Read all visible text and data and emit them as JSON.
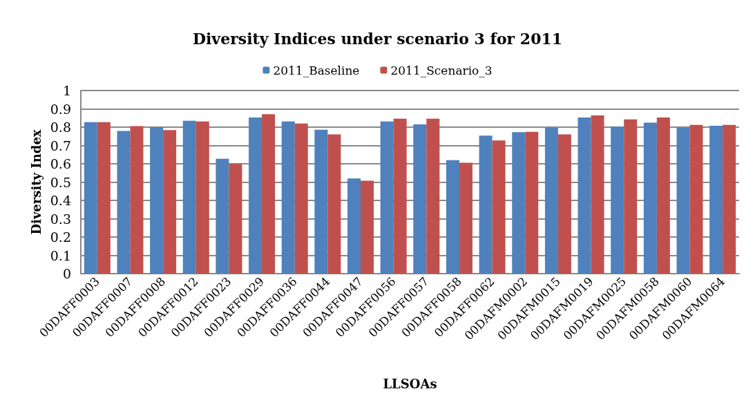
{
  "chart_data": {
    "type": "bar",
    "title": "Diversity Indices under scenario 3 for 2011",
    "xlabel": "LLSOAs",
    "ylabel": "Diversity Index",
    "categories": [
      "00DAFF0003",
      "00DAFF0007",
      "00DAFF0008",
      "00DAFF0012",
      "00DAFF0023",
      "00DAFF0029",
      "00DAFF0036",
      "00DAFF0044",
      "00DAFF0047",
      "00DAFF0056",
      "00DAFF0057",
      "00DAFF0058",
      "00DAFF0062",
      "00DAFM0002",
      "00DAFM0015",
      "00DAFM0019",
      "00DAFM0025",
      "00DAFM0058",
      "00DAFM0060",
      "00DAFM0064"
    ],
    "series": [
      {
        "name": "2011_Baseline",
        "color": "#4f81bd",
        "values": [
          0.827,
          0.779,
          0.8,
          0.835,
          0.627,
          0.853,
          0.831,
          0.786,
          0.52,
          0.831,
          0.815,
          0.62,
          0.754,
          0.773,
          0.796,
          0.853,
          0.803,
          0.825,
          0.797,
          0.808
        ]
      },
      {
        "name": "2011_Scenario_3",
        "color": "#c0504d",
        "values": [
          0.827,
          0.806,
          0.784,
          0.831,
          0.599,
          0.871,
          0.82,
          0.76,
          0.508,
          0.846,
          0.846,
          0.606,
          0.727,
          0.775,
          0.76,
          0.864,
          0.842,
          0.853,
          0.812,
          0.812
        ]
      }
    ],
    "ylim": [
      0,
      1
    ],
    "yticks": [
      0,
      0.1,
      0.2,
      0.3,
      0.4,
      0.5,
      0.6,
      0.7,
      0.8,
      0.9,
      1
    ],
    "grid": "y",
    "legend": "top"
  }
}
